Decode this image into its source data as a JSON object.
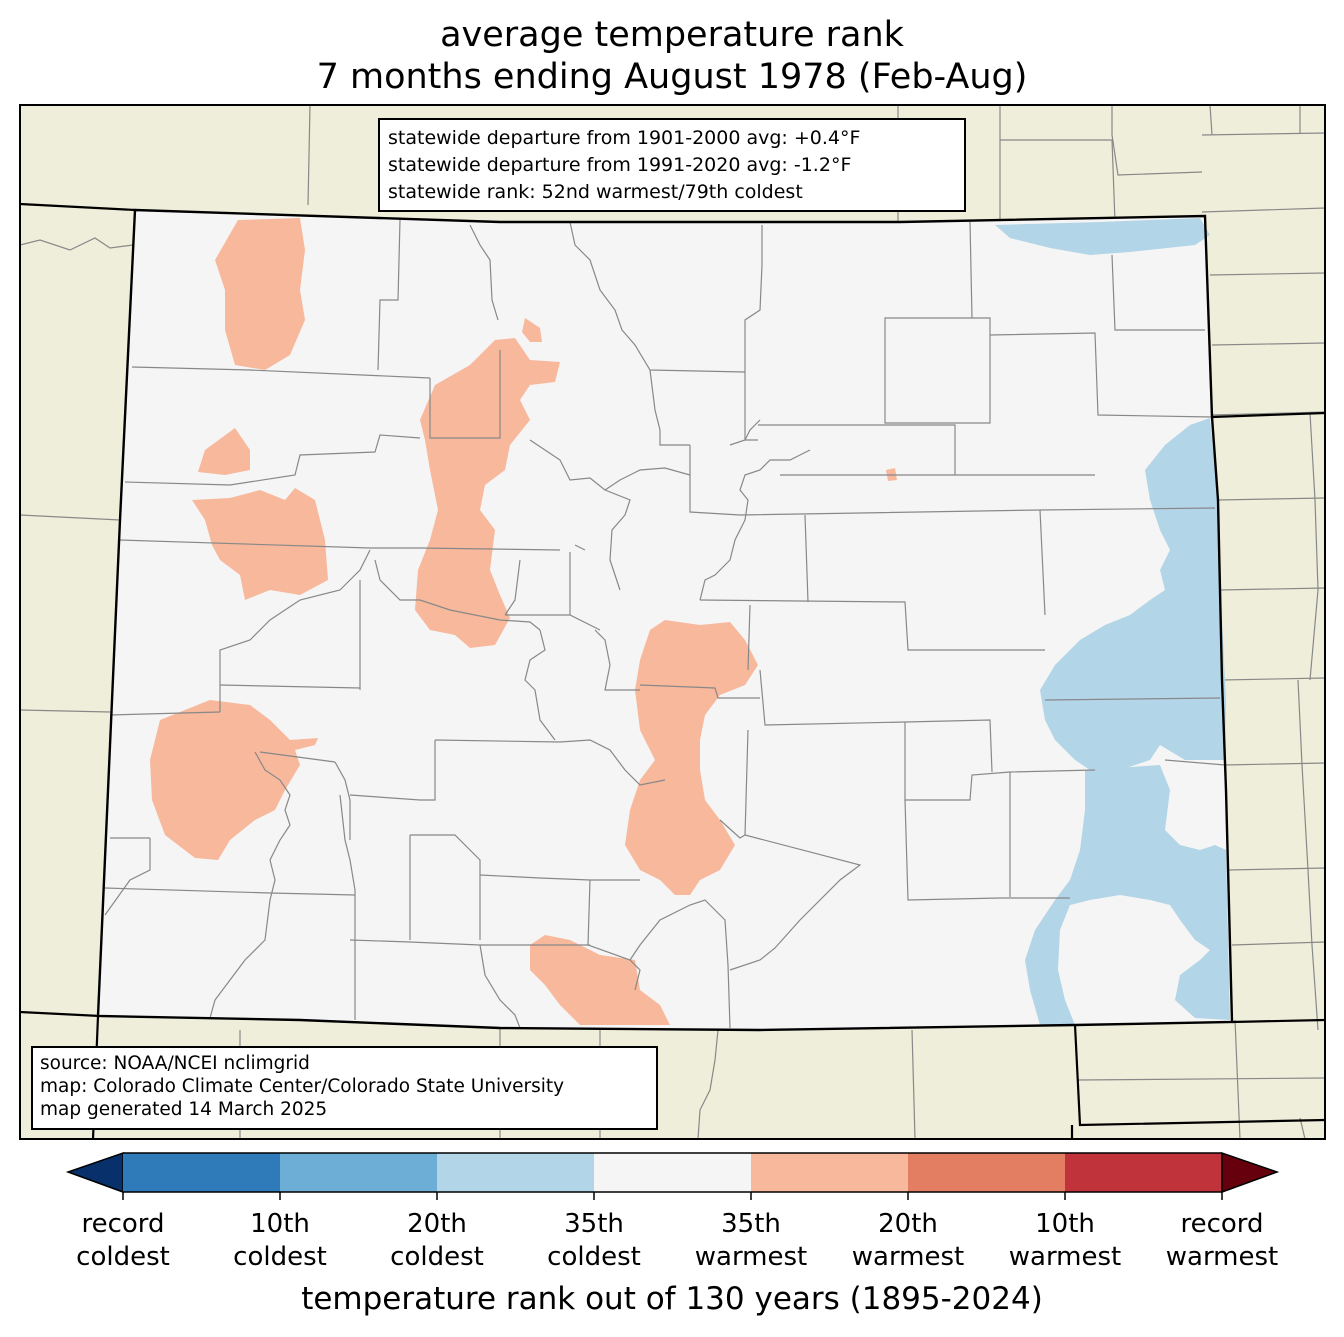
{
  "title": {
    "line1": "average temperature rank",
    "line2": "7 months ending August 1978 (Feb-Aug)"
  },
  "stats": {
    "departure_1901_2000": "statewide departure from 1901-2000 avg: +0.4°F",
    "departure_1991_2020": "statewide departure from 1991-2020 avg: -1.2°F",
    "rank": "statewide rank: 52nd warmest/79th coldest"
  },
  "source": {
    "line1": "source: NOAA/NCEI nclimgrid",
    "line2": "map: Colorado Climate Center/Colorado State University",
    "line3": "map generated 14 March 2025"
  },
  "legend": {
    "axis_title": "temperature rank out of 130 years (1895-2024)",
    "colors": [
      "#08306b",
      "#2f7ab9",
      "#6caed6",
      "#b3d5e8",
      "#f5f5f5",
      "#f7b89c",
      "#e37e62",
      "#c1333a",
      "#67000d"
    ],
    "ticks": [
      {
        "top": "record",
        "bottom": "coldest"
      },
      {
        "top": "10th",
        "bottom": "coldest"
      },
      {
        "top": "20th",
        "bottom": "coldest"
      },
      {
        "top": "35th",
        "bottom": "coldest"
      },
      {
        "top": "35th",
        "bottom": "warmest"
      },
      {
        "top": "20th",
        "bottom": "warmest"
      },
      {
        "top": "10th",
        "bottom": "warmest"
      },
      {
        "top": "record",
        "bottom": "warmest"
      }
    ]
  },
  "map_colors": {
    "background_land": "#efeedb",
    "colorado_base": "#f5f5f5",
    "warm_35th": "#f7b89c",
    "cold_35th": "#b3d5e8",
    "county_lines": "#888888"
  }
}
